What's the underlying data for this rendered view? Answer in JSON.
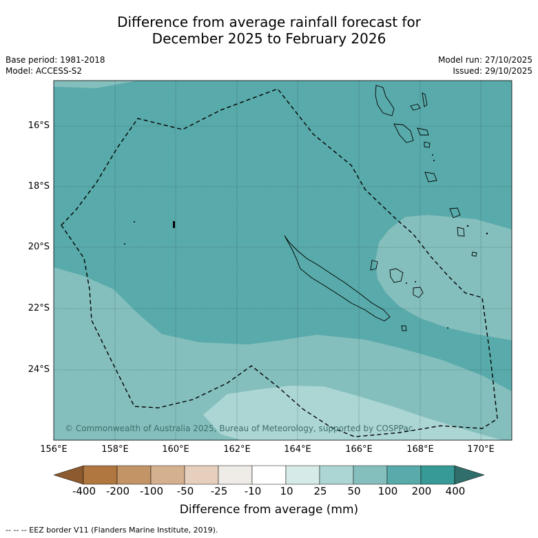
{
  "title_line1": "Difference from average rainfall forecast for",
  "title_line2": "December 2025 to February 2026",
  "meta": {
    "base_period": "Base period: 1981-2018",
    "model": "Model: ACCESS-S2",
    "model_run": "Model run: 27/10/2025",
    "issued": "Issued: 29/10/2025"
  },
  "copyright": "© Commonwealth of Australia 2025, Bureau of Meteorology, supported by COSPPac",
  "lat_labels": [
    "16°S",
    "18°S",
    "20°S",
    "22°S",
    "24°S"
  ],
  "lon_labels": [
    "156°E",
    "158°E",
    "160°E",
    "162°E",
    "164°E",
    "166°E",
    "168°E",
    "170°E"
  ],
  "colorbar": {
    "title": "Difference from average (mm)",
    "ticks": [
      "-400",
      "-200",
      "-100",
      "-50",
      "-25",
      "-10",
      "10",
      "25",
      "50",
      "100",
      "200",
      "400"
    ],
    "colors": [
      "#8c5a2e",
      "#b07840",
      "#c39466",
      "#d5b08f",
      "#e6d0bd",
      "#efebe7",
      "#ffffff",
      "#d6ebe8",
      "#acd6d4",
      "#84bfbd",
      "#59aaaa",
      "#379a96",
      "#2f6e6a"
    ]
  },
  "footnote": "--  --  -- EEZ border V11 (Flanders Marine Institute, 2019).",
  "legend": {
    "map_shading": "100 to 200 mm above average across most of the region; 50 to 100 mm in the south-west, east and south-east; 25 to 50 mm near the southern edge"
  }
}
